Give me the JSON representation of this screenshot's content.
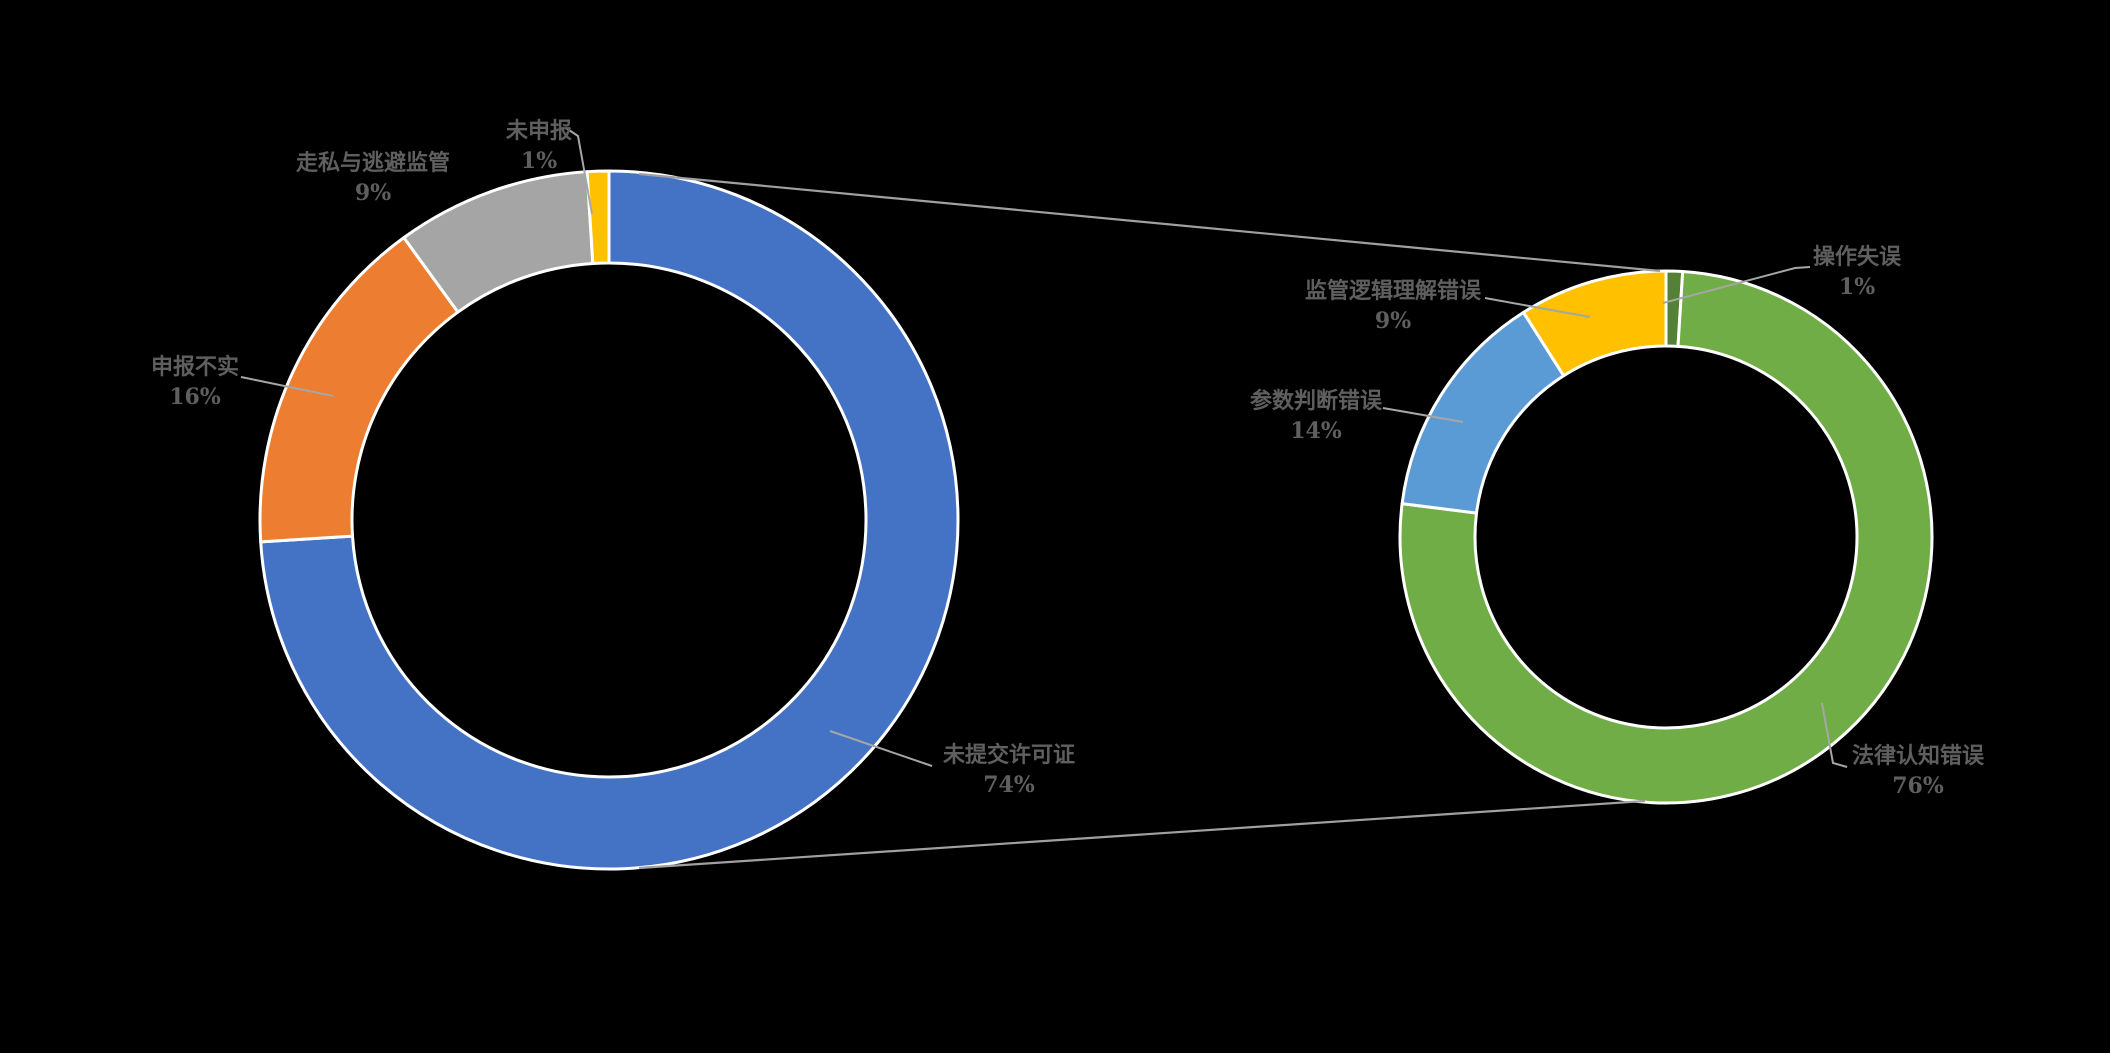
{
  "background_color": "#000000",
  "segment_border_color": "#ffffff",
  "connector_line_color": "#a6a6a6",
  "label_color": "#5f5f5f",
  "chart_data": [
    {
      "type": "pie",
      "variant": "doughnut",
      "name": "violation-types",
      "categories": [
        "未提交许可证",
        "申报不实",
        "走私与逃避监管",
        "未申报"
      ],
      "values": [
        74,
        16,
        9,
        1
      ],
      "unit": "percent",
      "colors": [
        "#4472C4",
        "#ED7D31",
        "#A5A5A5",
        "#FFC000"
      ],
      "start_angle_deg": 0,
      "direction": "clockwise",
      "legend": "none",
      "callouts": [
        {
          "label": "未提交许可证",
          "value": "74%"
        },
        {
          "label": "申报不实",
          "value": "16%"
        },
        {
          "label": "走私与逃避监管",
          "value": "9%"
        },
        {
          "label": "未申报",
          "value": "1%"
        }
      ]
    },
    {
      "type": "pie",
      "variant": "doughnut",
      "name": "error-causes",
      "categories": [
        "操作失误",
        "法律认知错误",
        "参数判断错误",
        "监管逻辑理解错误"
      ],
      "values": [
        1,
        76,
        14,
        9
      ],
      "unit": "percent",
      "colors": [
        "#538135",
        "#70AD47",
        "#5B9BD5",
        "#FFC000"
      ],
      "start_angle_deg": 0,
      "direction": "clockwise",
      "legend": "none",
      "callouts": [
        {
          "label": "操作失误",
          "value": "1%"
        },
        {
          "label": "法律认知错误",
          "value": "76%"
        },
        {
          "label": "参数判断错误",
          "value": "14%"
        },
        {
          "label": "监管逻辑理解错误",
          "value": "9%"
        }
      ]
    }
  ]
}
